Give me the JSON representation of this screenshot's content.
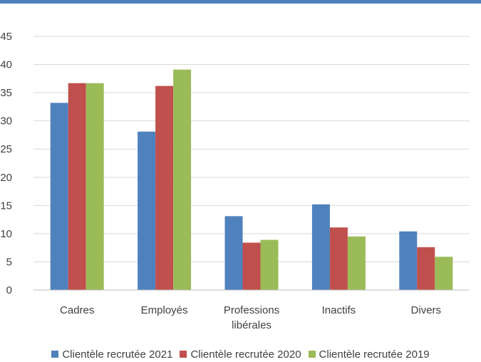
{
  "chart_data": {
    "type": "bar",
    "categories": [
      "Cadres",
      "Employés",
      "Professions libérales",
      "Inactifs",
      "Divers"
    ],
    "category_lines": [
      [
        "Cadres"
      ],
      [
        "Employés"
      ],
      [
        "Professions",
        "libérales"
      ],
      [
        "Inactifs"
      ],
      [
        "Divers"
      ]
    ],
    "series": [
      {
        "name": "Clientèle recrutée 2021",
        "color": "#4f81bd",
        "values": [
          33.2,
          28.1,
          13.1,
          15.2,
          10.4
        ]
      },
      {
        "name": "Clientèle recrutée 2020",
        "color": "#c0504d",
        "values": [
          36.7,
          36.2,
          8.4,
          11.1,
          7.6
        ]
      },
      {
        "name": "Clientèle recrutée 2019",
        "color": "#9bbb59",
        "values": [
          36.7,
          39.1,
          8.9,
          9.5,
          5.9
        ]
      }
    ],
    "ylim": [
      0,
      45
    ],
    "yticks": [
      "0",
      "5",
      "10",
      "15",
      "20",
      "25",
      "30",
      "35",
      "40",
      "45"
    ],
    "grid": true,
    "legend_position": "bottom"
  }
}
